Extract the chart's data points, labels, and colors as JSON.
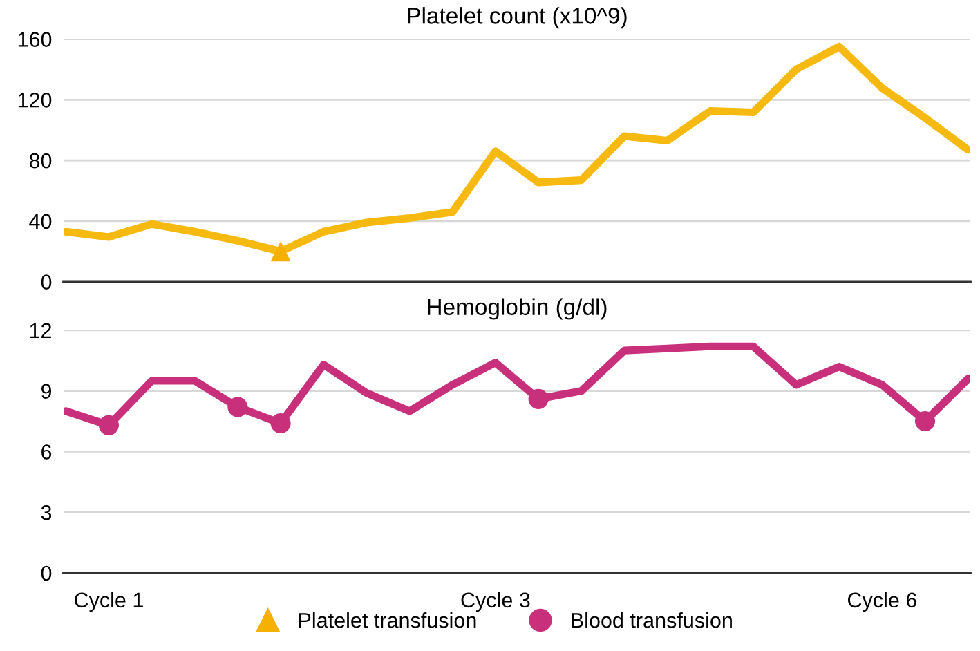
{
  "chart_data": [
    {
      "type": "line",
      "title": "Platelet count (x10^9)",
      "categories": [
        null,
        null,
        null,
        null,
        null,
        null,
        null,
        null,
        null,
        null,
        null,
        null,
        null,
        null,
        null,
        null,
        null,
        null,
        null,
        null,
        null,
        null
      ],
      "series": [
        {
          "color": "#f5b90f",
          "values": [
            33,
            29.5,
            38,
            33,
            27,
            20,
            33,
            39,
            42,
            46,
            86,
            65.5,
            67,
            96,
            93,
            112.6,
            111.7,
            140,
            155,
            127.7,
            108,
            87
          ]
        },
        {
          "name": "Platelet transfusion",
          "type": "scatter",
          "marker": "triangle",
          "color": "#f5b000",
          "values": [
            null,
            null,
            null,
            null,
            null,
            20,
            null,
            null,
            null,
            null,
            null,
            null,
            null,
            null,
            null,
            null,
            null,
            null,
            null,
            null,
            null,
            null
          ]
        }
      ],
      "ylim": [
        0,
        160
      ],
      "yticks": [
        0,
        40,
        80,
        120,
        160
      ],
      "grid": "y",
      "tick_labels": "y",
      "legend": "bottom"
    },
    {
      "type": "line",
      "title": "Hemoglobin (g/dl)",
      "categories": [
        null,
        "Cycle 1",
        null,
        null,
        null,
        null,
        null,
        null,
        null,
        null,
        "Cycle 3",
        null,
        null,
        null,
        null,
        null,
        null,
        null,
        null,
        "Cycle 6",
        null,
        null
      ],
      "series": [
        {
          "color": "#c9307c",
          "values": [
            8,
            7.3,
            9.5,
            9.5,
            8.2,
            7.4,
            10.3,
            8.9,
            8,
            9.3,
            10.4,
            8.6,
            9,
            11,
            11.1,
            11.2,
            11.2,
            9.3,
            10.2,
            9.3,
            7.5,
            9.6
          ]
        },
        {
          "name": "Blood transfusion",
          "type": "scatter",
          "marker": "circle",
          "color": "#c9307c",
          "values": [
            null,
            7.3,
            null,
            null,
            8.2,
            7.4,
            null,
            null,
            null,
            null,
            null,
            8.6,
            null,
            null,
            null,
            null,
            null,
            null,
            null,
            null,
            7.5,
            null
          ]
        }
      ],
      "ylim": [
        0,
        12
      ],
      "yticks": [
        0,
        3,
        6,
        9,
        12
      ],
      "grid": "y",
      "legend": "bottom"
    }
  ]
}
